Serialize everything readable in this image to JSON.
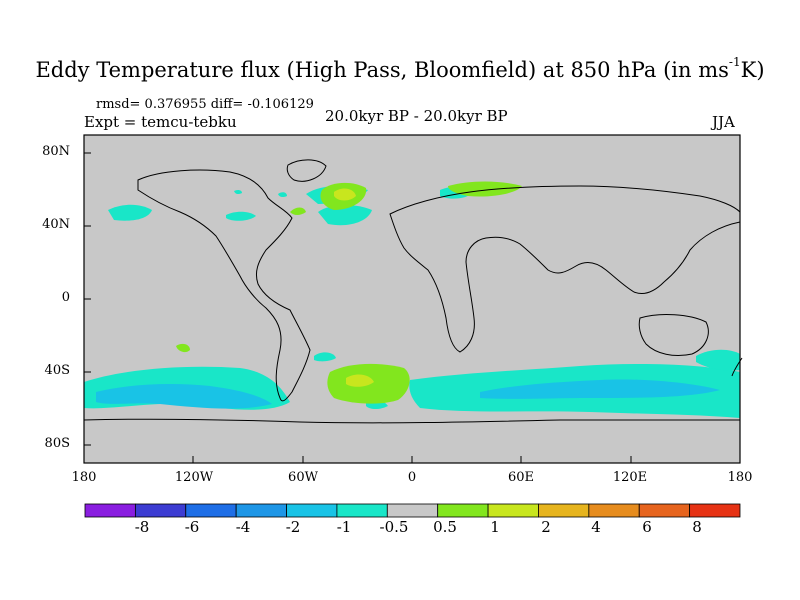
{
  "title": "Eddy Temperature flux (High Pass, Bloomfield) at 850 hPa (in ms",
  "title_sup": "-1",
  "title_end": "K)",
  "stats": "rmsd= 0.376955 diff= -0.106129",
  "expt": "Expt = temcu-tebku",
  "period": "20.0kyr BP - 20.0kyr BP",
  "season": "JJA",
  "y_ticks": [
    "80N",
    "40N",
    "0",
    "40S",
    "80S"
  ],
  "x_ticks": [
    "180",
    "120W",
    "60W",
    "0",
    "60E",
    "120E",
    "180"
  ],
  "colorbar": {
    "labels": [
      "-8",
      "-6",
      "-4",
      "-2",
      "-1",
      "-0.5",
      "0.5",
      "1",
      "2",
      "4",
      "6",
      "8"
    ],
    "colors": [
      "#8a1ee0",
      "#3c3cd2",
      "#1e6ee6",
      "#1e96e6",
      "#19c3e6",
      "#19e6c8",
      "#c8c8c8",
      "#82e61e",
      "#c8e61e",
      "#e6b41e",
      "#e68c1e",
      "#e6641e",
      "#e63214"
    ]
  },
  "map_colors": {
    "land_sea_background": "#c8c8c8",
    "coastline": "#000000"
  }
}
